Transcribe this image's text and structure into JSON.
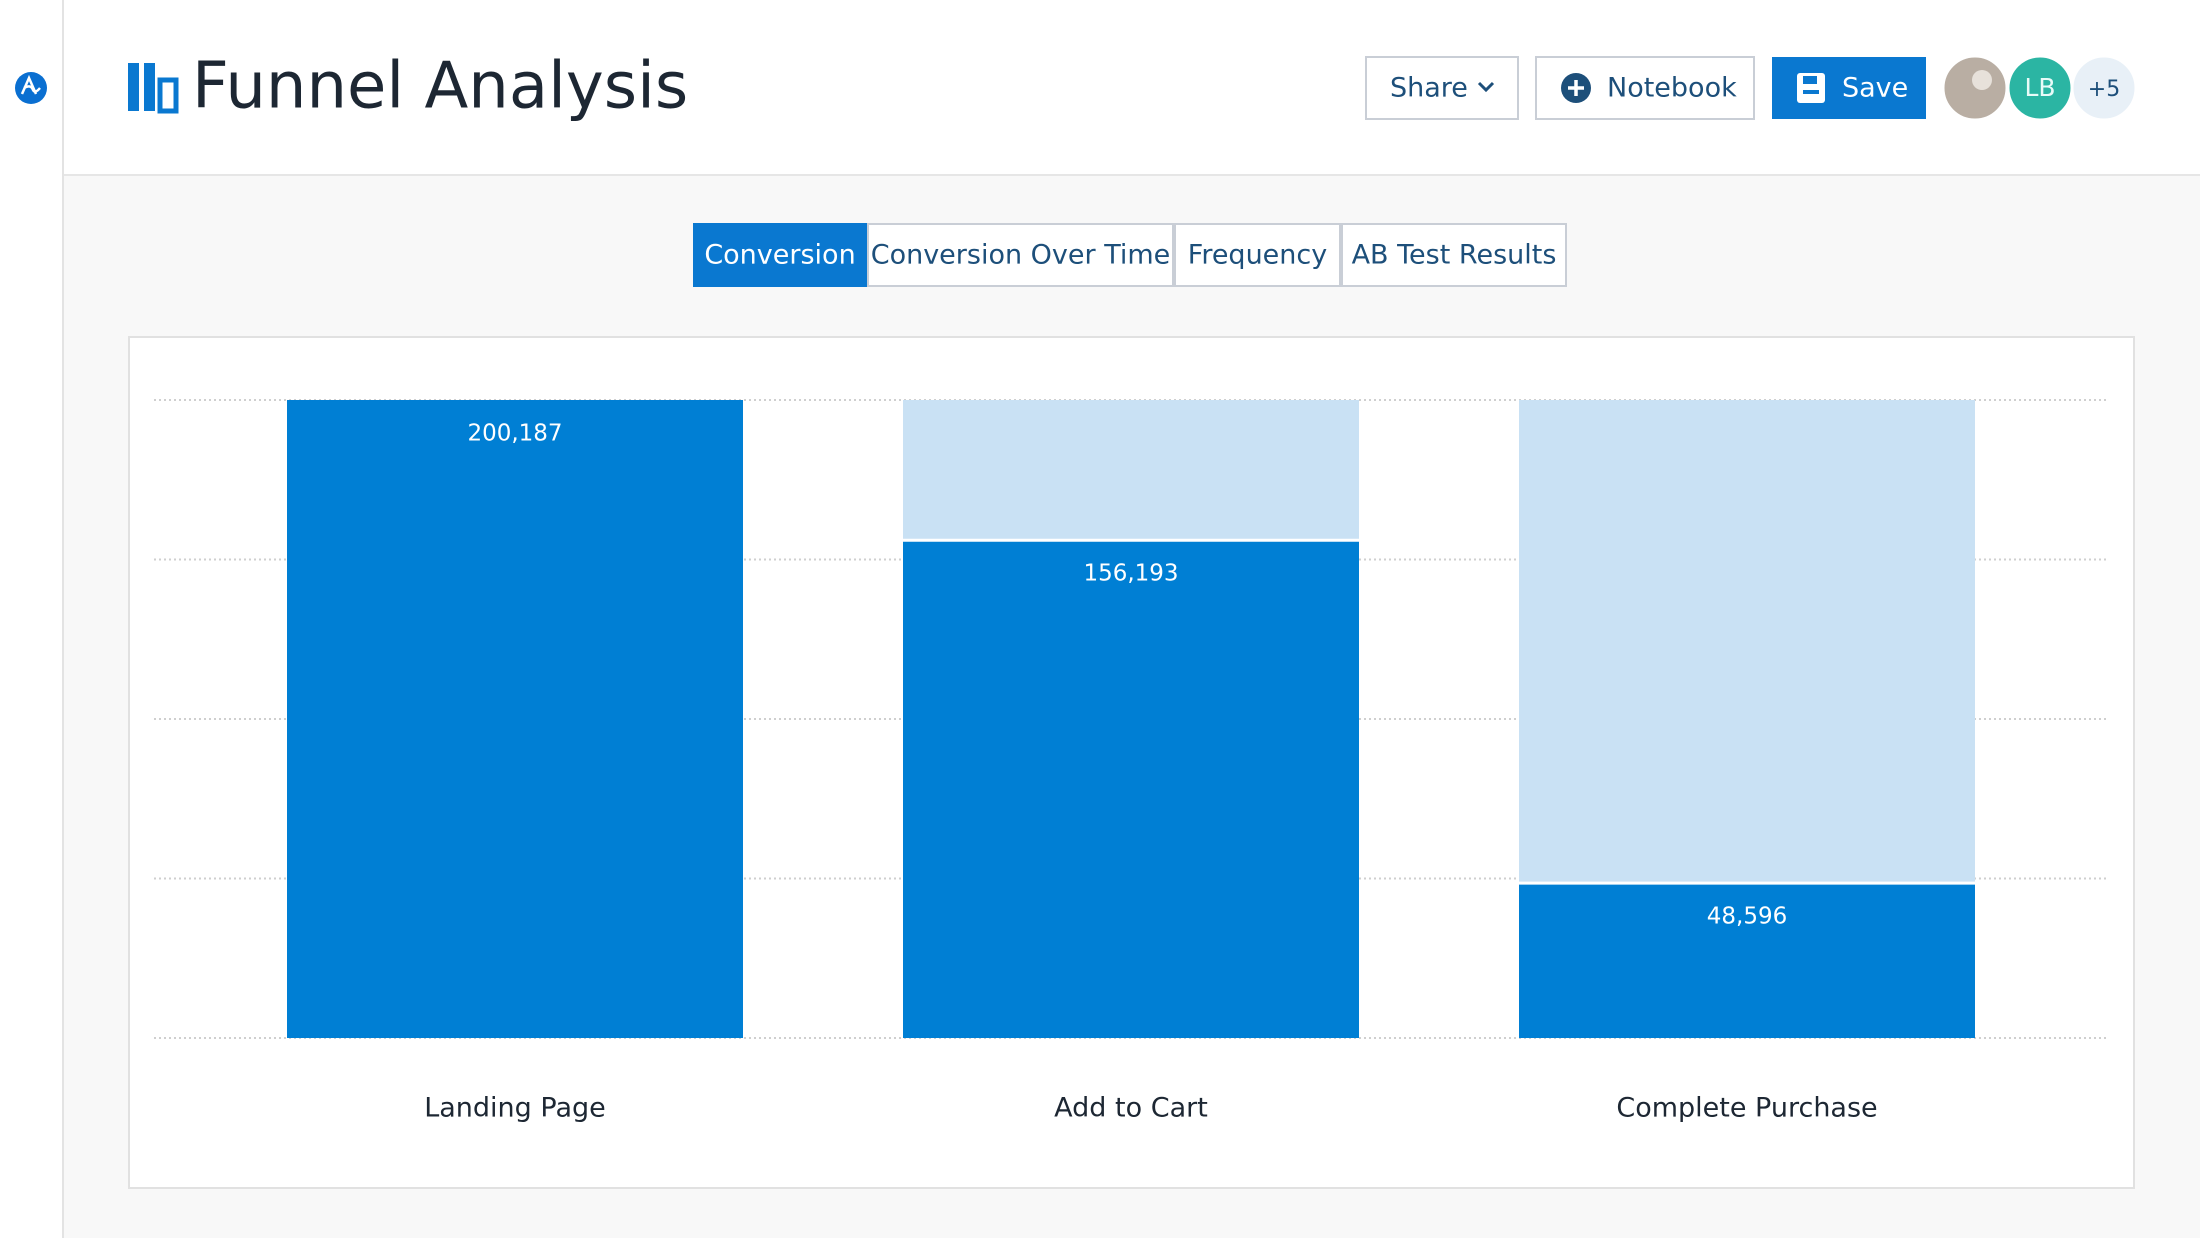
{
  "header": {
    "title": "Funnel Analysis",
    "buttons": {
      "share": "Share",
      "notebook": "Notebook",
      "save": "Save"
    },
    "avatars": {
      "initials": "LB",
      "more": "+5"
    }
  },
  "tabs": [
    "Conversion",
    "Conversion Over Time",
    "Frequency",
    "AB Test Results"
  ],
  "chart_data": {
    "type": "bar",
    "categories": [
      "Landing Page",
      "Add to Cart",
      "Complete Purchase"
    ],
    "values": [
      200187,
      156193,
      48596
    ],
    "value_labels": [
      "200,187",
      "156,193",
      "48,596"
    ],
    "color": "#007fd4",
    "track_color": "#c9e1f4",
    "ylim": [
      0,
      200187
    ],
    "yticks": [
      0,
      50047,
      100094,
      150140,
      200187
    ],
    "grid": true
  }
}
